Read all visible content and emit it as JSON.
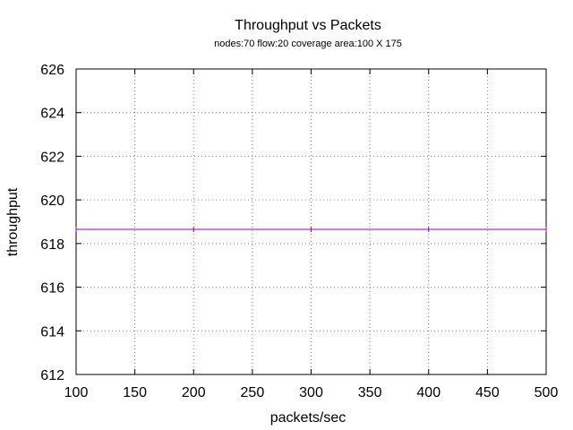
{
  "chart_data": {
    "type": "line",
    "title": "Throughput vs Packets",
    "subtitle": "nodes:70  flow:20  coverage area:100 X 175",
    "xlabel": "packets/sec",
    "ylabel": "throughput",
    "xlim": [
      100,
      500
    ],
    "ylim": [
      612,
      626
    ],
    "xticks": [
      "100",
      "150",
      "200",
      "250",
      "300",
      "350",
      "400",
      "450",
      "500"
    ],
    "yticks": [
      "612",
      "614",
      "616",
      "618",
      "620",
      "622",
      "624",
      "626"
    ],
    "grid": true,
    "series": [
      {
        "color": "#9400d3",
        "x": [
          100,
          200,
          300,
          400,
          500
        ],
        "y": [
          618.65,
          618.65,
          618.65,
          618.65,
          618.65
        ]
      }
    ]
  }
}
